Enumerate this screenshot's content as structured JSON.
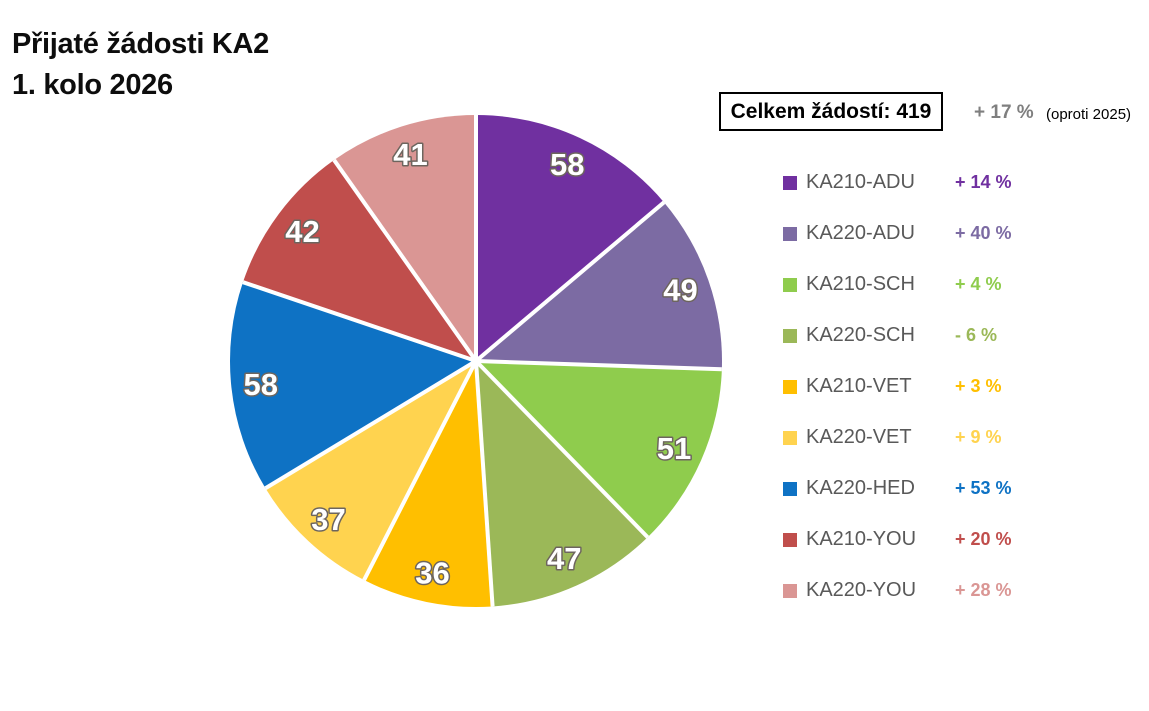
{
  "title": {
    "line1": "Přijaté žádosti KA2",
    "line2": "1. kolo 2026"
  },
  "total_box": {
    "label": "Celkem žádostí: 419",
    "change": "+ 17 %",
    "note": "(oproti 2025)"
  },
  "chart_data": {
    "type": "pie",
    "title": "Přijaté žádosti KA2 1. kolo 2026",
    "total": 419,
    "start_angle_deg": 0,
    "direction": "clockwise",
    "data_labels": "values",
    "legend_position": "right",
    "slices": [
      {
        "label": "KA210-ADU",
        "value": 58,
        "color": "#7030A0",
        "change": "+ 14 %"
      },
      {
        "label": "KA220-ADU",
        "value": 49,
        "color": "#7C6BA3",
        "change": "+ 40 %"
      },
      {
        "label": "KA210-SCH",
        "value": 51,
        "color": "#8FCC4D",
        "change": "+ 4 %"
      },
      {
        "label": "KA220-SCH",
        "value": 47,
        "color": "#9BB858",
        "change": "- 6 %"
      },
      {
        "label": "KA210-VET",
        "value": 36,
        "color": "#FFBF00",
        "change": "+ 3 %"
      },
      {
        "label": "KA220-VET",
        "value": 37,
        "color": "#FFD34F",
        "change": "+ 9 %"
      },
      {
        "label": "KA220-HED",
        "value": 58,
        "color": "#0E72C4",
        "change": "+ 53 %"
      },
      {
        "label": "KA210-YOU",
        "value": 42,
        "color": "#C04E4C",
        "change": "+ 20 %"
      },
      {
        "label": "KA220-YOU",
        "value": 41,
        "color": "#DA9694",
        "change": "+ 28 %"
      }
    ],
    "colors": {
      "background": "#FFFFFF",
      "legend_label": "#595959",
      "total_change": "#7F7F7F",
      "separator": "#FFFFFF"
    }
  }
}
